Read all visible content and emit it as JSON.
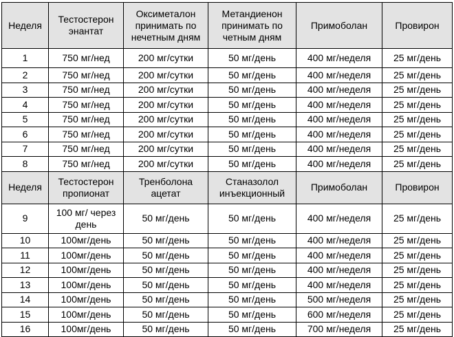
{
  "table": {
    "sections": [
      {
        "header": [
          "Неделя",
          "Тестостерон энантат",
          "Оксиметалон принимать по нечетным дням",
          "Метандиенон принимать по четным дням",
          "Примоболан",
          "Провирон"
        ],
        "rows": [
          [
            "1",
            "750 мг/нед",
            "200 мг/сутки",
            "50 мг/день",
            "400 мг/неделя",
            "25 мг/день"
          ],
          [
            "2",
            "750 мг/нед",
            "200 мг/сутки",
            "50 мг/день",
            "400 мг/неделя",
            "25 мг/день"
          ],
          [
            "3",
            "750 мг/нед",
            "200 мг/сутки",
            "50 мг/день",
            "400 мг/неделя",
            "25 мг/день"
          ],
          [
            "4",
            "750 мг/нед",
            "200 мг/сутки",
            "50 мг/день",
            "400 мг/неделя",
            "25 мг/день"
          ],
          [
            "5",
            "750 мг/нед",
            "200 мг/сутки",
            "50 мг/день",
            "400 мг/неделя",
            "25 мг/день"
          ],
          [
            "6",
            "750 мг/нед",
            "200 мг/сутки",
            "50 мг/день",
            "400 мг/неделя",
            "25 мг/день"
          ],
          [
            "7",
            "750 мг/нед",
            "200 мг/сутки",
            "50 мг/день",
            "400 мг/неделя",
            "25 мг/день"
          ],
          [
            "8",
            "750 мг/нед",
            "200 мг/сутки",
            "50 мг/день",
            "400 мг/неделя",
            "25 мг/день"
          ]
        ]
      },
      {
        "header": [
          "Неделя",
          "Тестостерон пропионат",
          "Тренболона ацетат",
          "Станазолол инъекционный",
          "Примоболан",
          "Провирон"
        ],
        "rows": [
          [
            "9",
            "100 мг/ через день",
            "50 мг/день",
            "50 мг/день",
            "400 мг/неделя",
            "25 мг/день"
          ],
          [
            "10",
            "100мг/день",
            "50 мг/день",
            "50 мг/день",
            "400 мг/неделя",
            "25 мг/день"
          ],
          [
            "11",
            "100мг/день",
            "50 мг/день",
            "50 мг/день",
            "400 мг/неделя",
            "25 мг/день"
          ],
          [
            "12",
            "100мг/день",
            "50 мг/день",
            "50 мг/день",
            "400 мг/неделя",
            "25 мг/день"
          ],
          [
            "13",
            "100мг/день",
            "50 мг/день",
            "50 мг/день",
            "400 мг/неделя",
            "25 мг/день"
          ],
          [
            "14",
            "100мг/день",
            "50 мг/день",
            "50 мг/день",
            "500 мг/неделя",
            "25 мг/день"
          ],
          [
            "15",
            "100мг/день",
            "50 мг/день",
            "50 мг/день",
            "600 мг/неделя",
            "25 мг/день"
          ],
          [
            "16",
            "100мг/день",
            "50 мг/день",
            "50 мг/день",
            "700 мг/неделя",
            "25 мг/день"
          ]
        ]
      }
    ]
  }
}
